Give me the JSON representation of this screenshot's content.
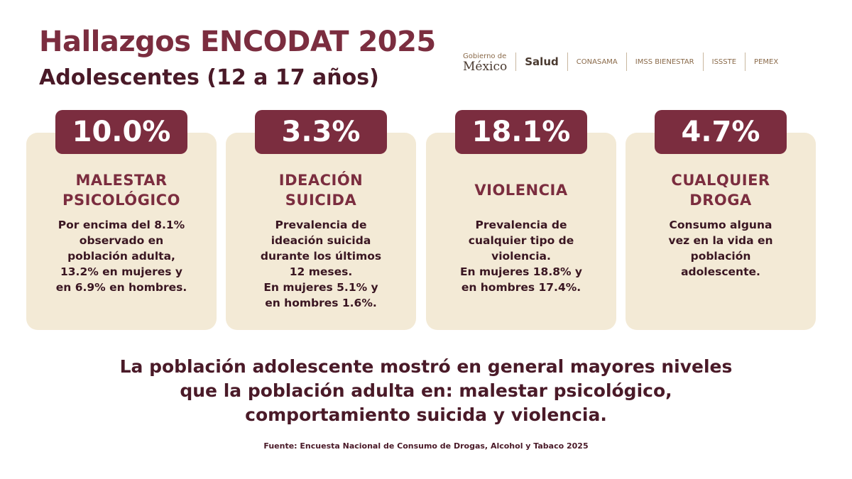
{
  "header": {
    "title": "Hallazgos ENCODAT 2025",
    "subtitle": "Adolescentes (12 a 17 años)"
  },
  "logos": [
    "Gobierno de",
    "México",
    "Salud",
    "CONASAMA",
    "IMSS BIENESTAR",
    "ISSSTE",
    "PEMEX"
  ],
  "cards": [
    {
      "stat": "10.0%",
      "label": [
        "MALESTAR",
        "PSICOLÓGICO"
      ],
      "text": [
        "Por encima del 8.1%",
        "observado en",
        "población adulta,",
        "13.2% en mujeres y",
        "en 6.9% en hombres."
      ]
    },
    {
      "stat": "3.3%",
      "label": [
        "IDEACIÓN",
        "SUICIDA"
      ],
      "text": [
        "Prevalencia de",
        "ideación suicida",
        "durante los últimos",
        "12 meses.",
        "En mujeres 5.1% y",
        "en hombres 1.6%."
      ]
    },
    {
      "stat": "18.1%",
      "label": [
        "VIOLENCIA"
      ],
      "text": [
        "Prevalencia de",
        "cualquier tipo de",
        "violencia.",
        "En mujeres 18.8% y",
        "en hombres 17.4%."
      ]
    },
    {
      "stat": "4.7%",
      "label": [
        "CUALQUIER",
        "DROGA"
      ],
      "text": [
        "Consumo alguna",
        "vez en la vida en",
        "población",
        "adolescente."
      ]
    }
  ],
  "summary": [
    "La población adolescente mostró en general mayores niveles",
    "que la población adulta en: malestar psicológico,",
    "comportamiento suicida y violencia."
  ],
  "source": "Fuente: Encuesta Nacional de Consumo de Drogas, Alcohol y Tabaco 2025"
}
